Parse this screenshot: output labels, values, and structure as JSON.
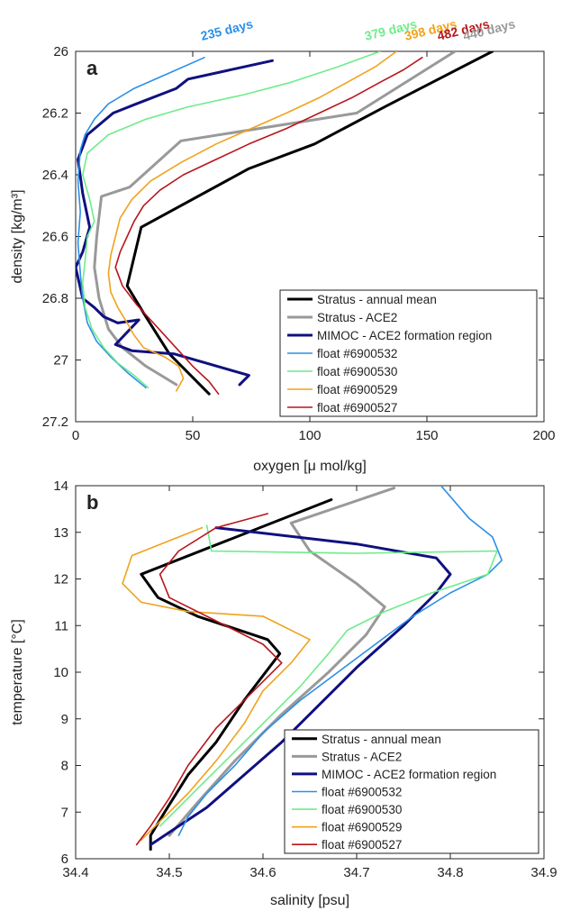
{
  "chart_data": [
    {
      "type": "line",
      "panel_label": "a",
      "xlabel": "oxygen [μ mol/kg]",
      "ylabel": "density [kg/m³]",
      "xlim": [
        0,
        200
      ],
      "ylim": [
        26,
        27.2
      ],
      "y_reversed": true,
      "xticks": [
        0,
        50,
        100,
        150,
        200
      ],
      "yticks": [
        26,
        26.2,
        26.4,
        26.6,
        26.8,
        27,
        27.2
      ],
      "xtick_labels": [
        "0",
        "50",
        "100",
        "150",
        "200"
      ],
      "ytick_labels": [
        "26",
        "26.2",
        "26.4",
        "26.6",
        "26.8",
        "27",
        "27.2"
      ],
      "grid": false,
      "legend_position": "bottom-right",
      "annotations": [
        {
          "text": "235 days",
          "x": 65,
          "y": 25.95,
          "color": "#2b8fe8"
        },
        {
          "text": "379 days",
          "x": 135,
          "y": 25.95,
          "color": "#6fec8a"
        },
        {
          "text": "398 days",
          "x": 152,
          "y": 25.95,
          "color": "#f0a21c"
        },
        {
          "text": "482 days",
          "x": 166,
          "y": 25.95,
          "color": "#b8161c"
        },
        {
          "text": "440 days",
          "x": 177,
          "y": 25.95,
          "color": "#999999"
        }
      ],
      "series": [
        {
          "name": "Stratus - annual mean",
          "color": "#000000",
          "width": 3,
          "x": [
            178,
            132,
            102,
            74,
            28,
            22,
            30,
            40,
            57
          ],
          "y": [
            26.0,
            26.18,
            26.3,
            26.38,
            26.57,
            26.76,
            26.86,
            26.98,
            27.11
          ]
        },
        {
          "name": "Stratus - ACE2",
          "color": "#999999",
          "width": 3,
          "x": [
            162,
            120,
            45,
            23,
            11,
            9,
            8,
            10,
            14,
            20,
            30,
            43
          ],
          "y": [
            26.0,
            26.2,
            26.29,
            26.44,
            26.47,
            26.6,
            26.7,
            26.8,
            26.9,
            26.96,
            27.02,
            27.08
          ]
        },
        {
          "name": "MIMOC - ACE2 formation region",
          "color": "#101080",
          "width": 3,
          "x": [
            84,
            48,
            43,
            26,
            16,
            5,
            1,
            3,
            6,
            3,
            0,
            3,
            8,
            12,
            18,
            27,
            17,
            24,
            42,
            74,
            70
          ],
          "y": [
            26.03,
            26.09,
            26.12,
            26.17,
            26.2,
            26.27,
            26.35,
            26.46,
            26.57,
            26.65,
            26.7,
            26.8,
            26.83,
            26.86,
            26.88,
            26.87,
            26.95,
            26.97,
            26.98,
            27.05,
            27.08
          ]
        },
        {
          "name": "float #6900532",
          "color": "#2b8fe8",
          "width": 1.6,
          "x": [
            55,
            40,
            25,
            14,
            8,
            4,
            2,
            1,
            2,
            1,
            2,
            3,
            5,
            9,
            15,
            22,
            30
          ],
          "y": [
            26.02,
            26.07,
            26.12,
            26.17,
            26.22,
            26.27,
            26.32,
            26.42,
            26.52,
            26.62,
            26.72,
            26.8,
            26.88,
            26.94,
            26.99,
            27.04,
            27.09
          ]
        },
        {
          "name": "float #6900530",
          "color": "#6fec8a",
          "width": 1.6,
          "x": [
            130,
            112,
            92,
            72,
            48,
            30,
            14,
            5,
            3,
            6,
            8,
            5,
            4,
            3,
            4,
            7,
            12,
            18,
            25,
            31
          ],
          "y": [
            26.0,
            26.05,
            26.1,
            26.14,
            26.18,
            26.22,
            26.27,
            26.33,
            26.4,
            26.48,
            26.55,
            26.6,
            26.68,
            26.75,
            26.83,
            26.9,
            26.96,
            27.01,
            27.05,
            27.09
          ]
        },
        {
          "name": "float #6900529",
          "color": "#f0a21c",
          "width": 1.6,
          "x": [
            137,
            128,
            116,
            104,
            90,
            75,
            60,
            45,
            32,
            24,
            19,
            17,
            15,
            14,
            15,
            18,
            22,
            25,
            29,
            38,
            44,
            46,
            43
          ],
          "y": [
            26.0,
            26.05,
            26.1,
            26.15,
            26.2,
            26.25,
            26.3,
            26.36,
            26.42,
            26.48,
            26.54,
            26.6,
            26.66,
            26.72,
            26.78,
            26.83,
            26.88,
            26.92,
            26.96,
            26.99,
            27.02,
            27.06,
            27.1
          ]
        },
        {
          "name": "float #6900527",
          "color": "#b8161c",
          "width": 1.6,
          "x": [
            148,
            140,
            130,
            118,
            104,
            90,
            74,
            60,
            46,
            36,
            29,
            25,
            22,
            19,
            17,
            20,
            26,
            32,
            38,
            44,
            50,
            57,
            61
          ],
          "y": [
            26.02,
            26.06,
            26.1,
            26.15,
            26.2,
            26.25,
            26.3,
            26.35,
            26.4,
            26.45,
            26.5,
            26.55,
            26.6,
            26.65,
            26.7,
            26.76,
            26.82,
            26.87,
            26.92,
            26.97,
            27.02,
            27.07,
            27.11
          ]
        }
      ]
    },
    {
      "type": "line",
      "panel_label": "b",
      "xlabel": "salinity [psu]",
      "ylabel": "temperature [°C]",
      "xlim": [
        34.4,
        34.9
      ],
      "ylim": [
        6,
        14
      ],
      "xticks": [
        34.4,
        34.5,
        34.6,
        34.7,
        34.8,
        34.9
      ],
      "yticks": [
        6,
        7,
        8,
        9,
        10,
        11,
        12,
        13,
        14
      ],
      "xtick_labels": [
        "34.4",
        "34.5",
        "34.6",
        "34.7",
        "34.8",
        "34.9"
      ],
      "ytick_labels": [
        "6",
        "7",
        "8",
        "9",
        "10",
        "11",
        "12",
        "13",
        "14"
      ],
      "grid": false,
      "legend_position": "bottom-right",
      "series": [
        {
          "name": "Stratus - annual mean",
          "color": "#000000",
          "width": 3,
          "x": [
            34.673,
            34.47,
            34.488,
            34.53,
            34.605,
            34.618,
            34.58,
            34.55,
            34.52,
            34.495,
            34.48,
            34.48
          ],
          "y": [
            13.7,
            12.1,
            11.6,
            11.2,
            10.7,
            10.4,
            9.4,
            8.5,
            7.8,
            7.0,
            6.5,
            6.2
          ]
        },
        {
          "name": "Stratus - ACE2",
          "color": "#999999",
          "width": 3,
          "x": [
            34.74,
            34.63,
            34.65,
            34.7,
            34.73,
            34.71,
            34.67,
            34.62,
            34.57,
            34.53,
            34.5
          ],
          "y": [
            13.95,
            13.2,
            12.6,
            11.9,
            11.4,
            10.8,
            10.0,
            9.1,
            8.1,
            7.2,
            6.5
          ]
        },
        {
          "name": "MIMOC - ACE2 formation region",
          "color": "#101080",
          "width": 3,
          "x": [
            34.55,
            34.7,
            34.785,
            34.8,
            34.785,
            34.75,
            34.7,
            34.66,
            34.62,
            34.58,
            34.54,
            34.51,
            34.48
          ],
          "y": [
            13.1,
            12.75,
            12.45,
            12.1,
            11.7,
            11.0,
            10.1,
            9.3,
            8.5,
            7.8,
            7.1,
            6.7,
            6.3
          ]
        },
        {
          "name": "float #6900532",
          "color": "#2b8fe8",
          "width": 1.6,
          "x": [
            34.79,
            34.82,
            34.845,
            34.855,
            34.84,
            34.8,
            34.76,
            34.72,
            34.68,
            34.64,
            34.6,
            34.57,
            34.54,
            34.52,
            34.51
          ],
          "y": [
            14.0,
            13.3,
            12.9,
            12.4,
            12.1,
            11.7,
            11.2,
            10.6,
            10.0,
            9.4,
            8.7,
            8.0,
            7.4,
            6.9,
            6.5
          ]
        },
        {
          "name": "float #6900530",
          "color": "#6fec8a",
          "width": 1.6,
          "x": [
            34.54,
            34.545,
            34.7,
            34.85,
            34.84,
            34.78,
            34.73,
            34.69,
            34.67,
            34.64,
            34.6,
            34.56,
            34.52,
            34.49
          ],
          "y": [
            13.15,
            12.6,
            12.55,
            12.6,
            12.1,
            11.7,
            11.3,
            10.9,
            10.4,
            9.7,
            8.9,
            8.1,
            7.3,
            6.7
          ]
        },
        {
          "name": "float #6900529",
          "color": "#f0a21c",
          "width": 1.6,
          "x": [
            34.535,
            34.46,
            34.45,
            34.47,
            34.52,
            34.6,
            34.65,
            34.63,
            34.6,
            34.58,
            34.55,
            34.52,
            34.49,
            34.47
          ],
          "y": [
            13.1,
            12.5,
            11.9,
            11.5,
            11.3,
            11.2,
            10.7,
            10.2,
            9.6,
            8.9,
            8.1,
            7.4,
            6.8,
            6.4
          ]
        },
        {
          "name": "float #6900527",
          "color": "#b8161c",
          "width": 1.6,
          "x": [
            34.605,
            34.55,
            34.51,
            34.49,
            34.5,
            34.55,
            34.6,
            34.62,
            34.59,
            34.55,
            34.52,
            34.5,
            34.48,
            34.465
          ],
          "y": [
            13.4,
            13.1,
            12.6,
            12.1,
            11.6,
            11.1,
            10.6,
            10.2,
            9.6,
            8.8,
            8.0,
            7.3,
            6.7,
            6.3
          ]
        }
      ]
    }
  ]
}
